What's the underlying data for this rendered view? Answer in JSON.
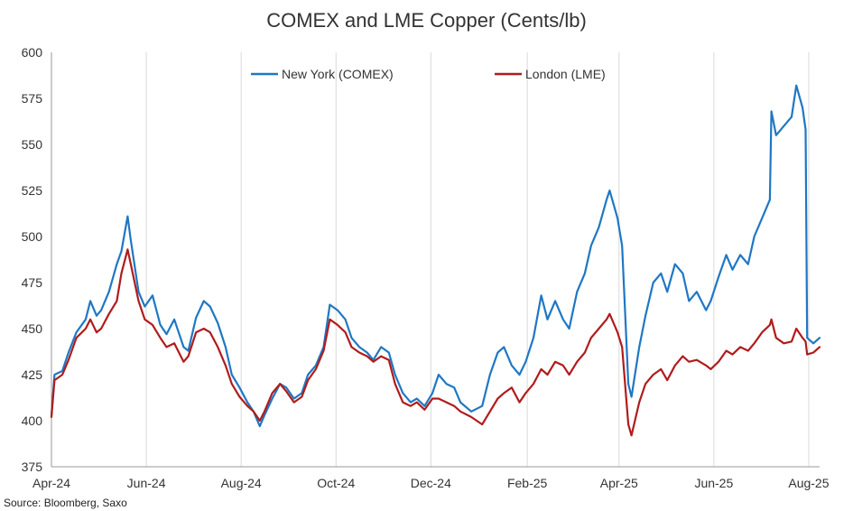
{
  "chart_data": {
    "type": "line",
    "title": "COMEX and LME Copper (Cents/lb)",
    "xlabel": "",
    "ylabel": "",
    "source": "Source: Bloomberg, Saxo",
    "ylim": [
      375,
      600
    ],
    "yticks": [
      375,
      400,
      425,
      450,
      475,
      500,
      525,
      550,
      575,
      600
    ],
    "xlim": [
      "2024-04-01",
      "2025-08-08"
    ],
    "xticks": [
      {
        "date": "2024-04-01",
        "label": "Apr-24"
      },
      {
        "date": "2024-06-01",
        "label": "Jun-24"
      },
      {
        "date": "2024-08-01",
        "label": "Aug-24"
      },
      {
        "date": "2024-10-01",
        "label": "Oct-24"
      },
      {
        "date": "2024-12-01",
        "label": "Dec-24"
      },
      {
        "date": "2025-02-01",
        "label": "Feb-25"
      },
      {
        "date": "2025-04-01",
        "label": "Apr-25"
      },
      {
        "date": "2025-06-01",
        "label": "Jun-25"
      },
      {
        "date": "2025-08-01",
        "label": "Aug-25"
      }
    ],
    "grid": {
      "vertical": true,
      "horizontal": false
    },
    "legend": "top",
    "colors": {
      "comex": "#1f77c4",
      "lme": "#b01c1c",
      "grid": "#d9d9d9",
      "axis": "#999999"
    },
    "series": [
      {
        "name": "New York (COMEX)",
        "color": "#1f77c4",
        "points": [
          [
            "2024-04-01",
            403
          ],
          [
            "2024-04-03",
            425
          ],
          [
            "2024-04-08",
            427
          ],
          [
            "2024-04-12",
            437
          ],
          [
            "2024-04-17",
            448
          ],
          [
            "2024-04-23",
            455
          ],
          [
            "2024-04-26",
            465
          ],
          [
            "2024-04-30",
            457
          ],
          [
            "2024-05-03",
            460
          ],
          [
            "2024-05-08",
            470
          ],
          [
            "2024-05-13",
            485
          ],
          [
            "2024-05-16",
            492
          ],
          [
            "2024-05-20",
            511
          ],
          [
            "2024-05-22",
            498
          ],
          [
            "2024-05-27",
            470
          ],
          [
            "2024-05-31",
            462
          ],
          [
            "2024-06-05",
            468
          ],
          [
            "2024-06-10",
            452
          ],
          [
            "2024-06-14",
            447
          ],
          [
            "2024-06-19",
            455
          ],
          [
            "2024-06-25",
            440
          ],
          [
            "2024-06-28",
            438
          ],
          [
            "2024-07-03",
            456
          ],
          [
            "2024-07-08",
            465
          ],
          [
            "2024-07-12",
            462
          ],
          [
            "2024-07-17",
            453
          ],
          [
            "2024-07-22",
            440
          ],
          [
            "2024-07-26",
            425
          ],
          [
            "2024-07-31",
            418
          ],
          [
            "2024-08-05",
            410
          ],
          [
            "2024-08-09",
            405
          ],
          [
            "2024-08-13",
            397
          ],
          [
            "2024-08-16",
            403
          ],
          [
            "2024-08-21",
            412
          ],
          [
            "2024-08-26",
            420
          ],
          [
            "2024-08-30",
            418
          ],
          [
            "2024-09-04",
            412
          ],
          [
            "2024-09-09",
            415
          ],
          [
            "2024-09-13",
            425
          ],
          [
            "2024-09-18",
            430
          ],
          [
            "2024-09-23",
            440
          ],
          [
            "2024-09-27",
            463
          ],
          [
            "2024-10-02",
            460
          ],
          [
            "2024-10-07",
            455
          ],
          [
            "2024-10-11",
            445
          ],
          [
            "2024-10-16",
            440
          ],
          [
            "2024-10-21",
            437
          ],
          [
            "2024-10-25",
            433
          ],
          [
            "2024-10-30",
            440
          ],
          [
            "2024-11-04",
            437
          ],
          [
            "2024-11-08",
            425
          ],
          [
            "2024-11-13",
            415
          ],
          [
            "2024-11-18",
            410
          ],
          [
            "2024-11-22",
            412
          ],
          [
            "2024-11-27",
            408
          ],
          [
            "2024-12-02",
            415
          ],
          [
            "2024-12-06",
            425
          ],
          [
            "2024-12-11",
            420
          ],
          [
            "2024-12-16",
            418
          ],
          [
            "2024-12-20",
            410
          ],
          [
            "2024-12-27",
            405
          ],
          [
            "2025-01-03",
            408
          ],
          [
            "2025-01-08",
            425
          ],
          [
            "2025-01-13",
            437
          ],
          [
            "2025-01-17",
            440
          ],
          [
            "2025-01-22",
            430
          ],
          [
            "2025-01-27",
            425
          ],
          [
            "2025-01-31",
            432
          ],
          [
            "2025-02-05",
            445
          ],
          [
            "2025-02-10",
            468
          ],
          [
            "2025-02-14",
            455
          ],
          [
            "2025-02-19",
            465
          ],
          [
            "2025-02-24",
            455
          ],
          [
            "2025-02-28",
            450
          ],
          [
            "2025-03-05",
            470
          ],
          [
            "2025-03-10",
            480
          ],
          [
            "2025-03-14",
            495
          ],
          [
            "2025-03-19",
            505
          ],
          [
            "2025-03-24",
            520
          ],
          [
            "2025-03-26",
            525
          ],
          [
            "2025-03-31",
            510
          ],
          [
            "2025-04-03",
            495
          ],
          [
            "2025-04-07",
            420
          ],
          [
            "2025-04-09",
            413
          ],
          [
            "2025-04-14",
            440
          ],
          [
            "2025-04-18",
            457
          ],
          [
            "2025-04-23",
            475
          ],
          [
            "2025-04-28",
            480
          ],
          [
            "2025-05-02",
            470
          ],
          [
            "2025-05-07",
            485
          ],
          [
            "2025-05-12",
            480
          ],
          [
            "2025-05-16",
            465
          ],
          [
            "2025-05-21",
            470
          ],
          [
            "2025-05-27",
            460
          ],
          [
            "2025-05-30",
            465
          ],
          [
            "2025-06-04",
            478
          ],
          [
            "2025-06-09",
            490
          ],
          [
            "2025-06-13",
            482
          ],
          [
            "2025-06-18",
            490
          ],
          [
            "2025-06-23",
            485
          ],
          [
            "2025-06-27",
            500
          ],
          [
            "2025-07-02",
            510
          ],
          [
            "2025-07-07",
            520
          ],
          [
            "2025-07-08",
            568
          ],
          [
            "2025-07-11",
            555
          ],
          [
            "2025-07-16",
            560
          ],
          [
            "2025-07-21",
            565
          ],
          [
            "2025-07-24",
            582
          ],
          [
            "2025-07-28",
            570
          ],
          [
            "2025-07-30",
            558
          ],
          [
            "2025-07-31",
            445
          ],
          [
            "2025-08-04",
            442
          ],
          [
            "2025-08-08",
            445
          ]
        ]
      },
      {
        "name": "London (LME)",
        "color": "#b01c1c",
        "points": [
          [
            "2024-04-01",
            402
          ],
          [
            "2024-04-03",
            422
          ],
          [
            "2024-04-08",
            425
          ],
          [
            "2024-04-12",
            433
          ],
          [
            "2024-04-17",
            445
          ],
          [
            "2024-04-23",
            450
          ],
          [
            "2024-04-26",
            455
          ],
          [
            "2024-04-30",
            448
          ],
          [
            "2024-05-03",
            450
          ],
          [
            "2024-05-08",
            458
          ],
          [
            "2024-05-13",
            465
          ],
          [
            "2024-05-16",
            480
          ],
          [
            "2024-05-20",
            493
          ],
          [
            "2024-05-22",
            485
          ],
          [
            "2024-05-27",
            465
          ],
          [
            "2024-05-31",
            455
          ],
          [
            "2024-06-05",
            452
          ],
          [
            "2024-06-10",
            445
          ],
          [
            "2024-06-14",
            440
          ],
          [
            "2024-06-19",
            442
          ],
          [
            "2024-06-25",
            432
          ],
          [
            "2024-06-28",
            435
          ],
          [
            "2024-07-03",
            448
          ],
          [
            "2024-07-08",
            450
          ],
          [
            "2024-07-12",
            448
          ],
          [
            "2024-07-17",
            440
          ],
          [
            "2024-07-22",
            430
          ],
          [
            "2024-07-26",
            420
          ],
          [
            "2024-07-31",
            413
          ],
          [
            "2024-08-05",
            408
          ],
          [
            "2024-08-09",
            405
          ],
          [
            "2024-08-13",
            400
          ],
          [
            "2024-08-16",
            405
          ],
          [
            "2024-08-21",
            415
          ],
          [
            "2024-08-26",
            420
          ],
          [
            "2024-08-30",
            416
          ],
          [
            "2024-09-04",
            410
          ],
          [
            "2024-09-09",
            413
          ],
          [
            "2024-09-13",
            422
          ],
          [
            "2024-09-18",
            428
          ],
          [
            "2024-09-23",
            438
          ],
          [
            "2024-09-27",
            455
          ],
          [
            "2024-10-02",
            452
          ],
          [
            "2024-10-07",
            448
          ],
          [
            "2024-10-11",
            440
          ],
          [
            "2024-10-16",
            437
          ],
          [
            "2024-10-21",
            435
          ],
          [
            "2024-10-25",
            432
          ],
          [
            "2024-10-30",
            435
          ],
          [
            "2024-11-04",
            433
          ],
          [
            "2024-11-08",
            420
          ],
          [
            "2024-11-13",
            410
          ],
          [
            "2024-11-18",
            408
          ],
          [
            "2024-11-22",
            410
          ],
          [
            "2024-11-27",
            406
          ],
          [
            "2024-12-02",
            412
          ],
          [
            "2024-12-06",
            412
          ],
          [
            "2024-12-11",
            410
          ],
          [
            "2024-12-16",
            408
          ],
          [
            "2024-12-20",
            405
          ],
          [
            "2024-12-27",
            402
          ],
          [
            "2025-01-03",
            398
          ],
          [
            "2025-01-08",
            405
          ],
          [
            "2025-01-13",
            412
          ],
          [
            "2025-01-17",
            415
          ],
          [
            "2025-01-22",
            418
          ],
          [
            "2025-01-27",
            410
          ],
          [
            "2025-01-31",
            415
          ],
          [
            "2025-02-05",
            420
          ],
          [
            "2025-02-10",
            428
          ],
          [
            "2025-02-14",
            425
          ],
          [
            "2025-02-19",
            432
          ],
          [
            "2025-02-24",
            430
          ],
          [
            "2025-02-28",
            425
          ],
          [
            "2025-03-05",
            432
          ],
          [
            "2025-03-10",
            437
          ],
          [
            "2025-03-14",
            445
          ],
          [
            "2025-03-19",
            450
          ],
          [
            "2025-03-24",
            455
          ],
          [
            "2025-03-26",
            458
          ],
          [
            "2025-03-31",
            448
          ],
          [
            "2025-04-03",
            440
          ],
          [
            "2025-04-07",
            398
          ],
          [
            "2025-04-09",
            392
          ],
          [
            "2025-04-14",
            410
          ],
          [
            "2025-04-18",
            420
          ],
          [
            "2025-04-23",
            425
          ],
          [
            "2025-04-28",
            428
          ],
          [
            "2025-05-02",
            422
          ],
          [
            "2025-05-07",
            430
          ],
          [
            "2025-05-12",
            435
          ],
          [
            "2025-05-16",
            432
          ],
          [
            "2025-05-21",
            433
          ],
          [
            "2025-05-27",
            430
          ],
          [
            "2025-05-30",
            428
          ],
          [
            "2025-06-04",
            432
          ],
          [
            "2025-06-09",
            438
          ],
          [
            "2025-06-13",
            436
          ],
          [
            "2025-06-18",
            440
          ],
          [
            "2025-06-23",
            438
          ],
          [
            "2025-06-27",
            442
          ],
          [
            "2025-07-02",
            448
          ],
          [
            "2025-07-07",
            452
          ],
          [
            "2025-07-08",
            455
          ],
          [
            "2025-07-11",
            445
          ],
          [
            "2025-07-16",
            442
          ],
          [
            "2025-07-21",
            443
          ],
          [
            "2025-07-24",
            450
          ],
          [
            "2025-07-28",
            445
          ],
          [
            "2025-07-30",
            443
          ],
          [
            "2025-07-31",
            436
          ],
          [
            "2025-08-04",
            437
          ],
          [
            "2025-08-08",
            440
          ]
        ]
      }
    ]
  }
}
